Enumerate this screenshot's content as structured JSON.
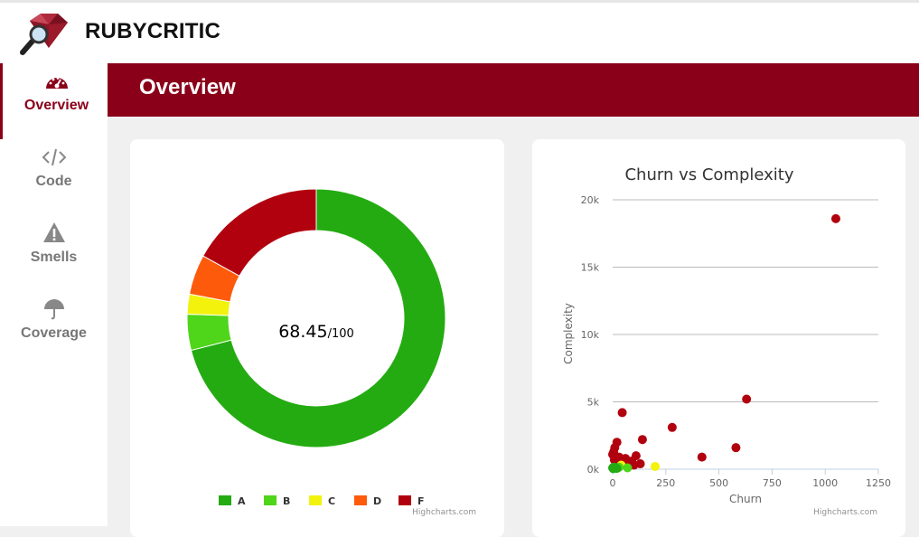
{
  "app": {
    "name": "RUBYCRITIC"
  },
  "sidebar": {
    "items": [
      {
        "label": "Overview",
        "icon": "dashboard-icon",
        "active": true
      },
      {
        "label": "Code",
        "icon": "code-icon",
        "active": false
      },
      {
        "label": "Smells",
        "icon": "warning-icon",
        "active": false
      },
      {
        "label": "Coverage",
        "icon": "umbrella-icon",
        "active": false
      }
    ]
  },
  "page": {
    "title": "Overview"
  },
  "score": {
    "value": "68.45",
    "suffix": "/100"
  },
  "colors": {
    "brand": "#8a0019",
    "A": "#24ab12",
    "B": "#4fd51a",
    "C": "#f2f20c",
    "D": "#fe5a0c",
    "F": "#b1000e"
  },
  "credits": "Highcharts.com",
  "chart_data": [
    {
      "type": "pie",
      "title": "",
      "categories": [
        "A",
        "B",
        "C",
        "D",
        "F"
      ],
      "values": [
        71,
        4.5,
        2.5,
        5,
        17
      ],
      "legend_position": "bottom"
    },
    {
      "type": "scatter",
      "title": "Churn vs Complexity",
      "xlabel": "Churn",
      "ylabel": "Complexity",
      "xlim": [
        0,
        1250
      ],
      "ylim": [
        0,
        20000
      ],
      "x_ticks": [
        "0",
        "250",
        "500",
        "750",
        "1000",
        "1250"
      ],
      "y_ticks": [
        "0k",
        "5k",
        "10k",
        "15k",
        "20k"
      ],
      "grid": true,
      "series": [
        {
          "rating": "F",
          "points": [
            [
              1050,
              18600
            ],
            [
              630,
              5200
            ],
            [
              45,
              4200
            ],
            [
              280,
              3100
            ],
            [
              580,
              1600
            ],
            [
              420,
              900
            ],
            [
              20,
              2000
            ],
            [
              140,
              2200
            ],
            [
              10,
              1600
            ],
            [
              5,
              1300
            ],
            [
              0,
              1100
            ],
            [
              30,
              900
            ],
            [
              60,
              800
            ],
            [
              90,
              600
            ],
            [
              110,
              1000
            ],
            [
              130,
              400
            ],
            [
              100,
              300
            ],
            [
              15,
              500
            ],
            [
              40,
              300
            ],
            [
              70,
              200
            ],
            [
              8,
              700
            ]
          ]
        },
        {
          "rating": "C",
          "points": [
            [
              200,
              200
            ],
            [
              40,
              300
            ]
          ]
        },
        {
          "rating": "B",
          "points": [
            [
              70,
              100
            ],
            [
              30,
              150
            ]
          ]
        },
        {
          "rating": "A",
          "points": [
            [
              0,
              100
            ],
            [
              5,
              150
            ],
            [
              10,
              80
            ],
            [
              20,
              60
            ],
            [
              3,
              40
            ],
            [
              12,
              120
            ]
          ]
        }
      ]
    }
  ]
}
